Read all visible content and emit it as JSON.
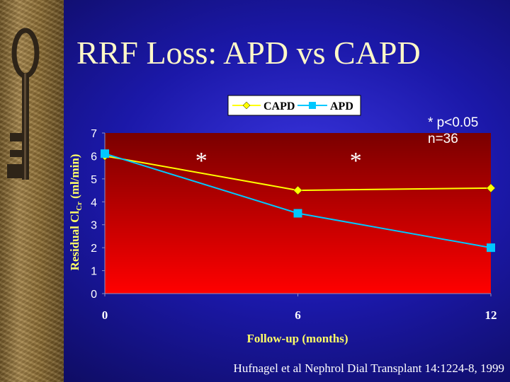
{
  "slide": {
    "title": "RRF Loss: APD vs CAPD",
    "note_line1": "* p<0.05",
    "note_line2": "n=36",
    "citation": "Hufnagel et al Nephrol Dial Transplant 14:1224-8, 1999"
  },
  "colors": {
    "background": "#2a26d0",
    "plot_top": "#7a0000",
    "plot_bottom": "#ff0000",
    "capd": "#ffff00",
    "apd": "#00c8ff"
  },
  "icons": {
    "left_strip": "antique-key-icon"
  },
  "chart_data": {
    "type": "line",
    "title": "",
    "xlabel": "Follow-up (months)",
    "ylabel_prefix": "Residual Cl",
    "ylabel_sub": "Cr",
    "ylabel_suffix": " (ml/min)",
    "x": [
      0,
      6,
      12
    ],
    "x_tick_labels": [
      "0",
      "6",
      "12"
    ],
    "xlim": [
      0,
      12
    ],
    "ylim": [
      0,
      7
    ],
    "y_ticks": [
      0,
      1,
      2,
      3,
      4,
      5,
      6,
      7
    ],
    "y_tick_labels": [
      "0",
      "1",
      "2",
      "3",
      "4",
      "5",
      "6",
      "7"
    ],
    "grid": false,
    "legend_position": "top",
    "series": [
      {
        "name": "CAPD",
        "values": [
          6.0,
          4.5,
          4.6
        ],
        "marker": "diamond",
        "color": "#ffff00"
      },
      {
        "name": "APD",
        "values": [
          6.1,
          3.5,
          2.0
        ],
        "marker": "square",
        "color": "#00c8ff"
      }
    ],
    "annotations": [
      {
        "text": "*",
        "x": 3
      },
      {
        "text": "*",
        "x": 7.8
      }
    ]
  }
}
